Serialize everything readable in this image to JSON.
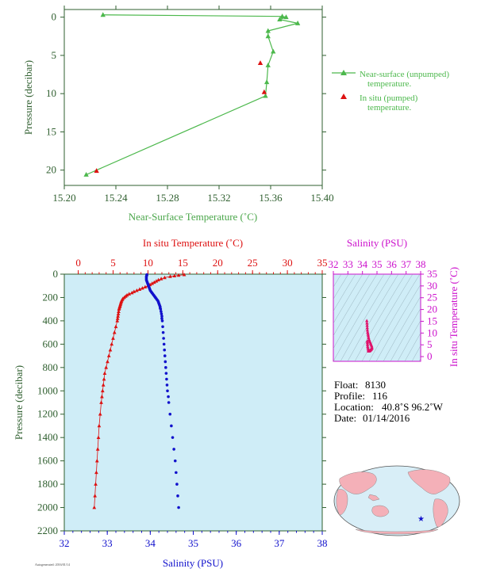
{
  "colors": {
    "top_axis": "#2f5f2f",
    "top_title": "#4aa64a",
    "near_surface": "#4cb84c",
    "in_situ": "#dd1111",
    "salinity": "#1111cc",
    "salinity_axis": "#cc11cc",
    "panel_bg": "#cfedf7",
    "profile_axis": "#2f5f2f",
    "ts_points": "#e0106a",
    "land": "#f4b0b8",
    "ocean": "#d8eef7"
  },
  "chart_data": [
    {
      "type": "line",
      "id": "near-surface",
      "xlabel": "Near-Surface Temperature (˚C)",
      "ylabel": "Pressure (decibar)",
      "xlim": [
        15.2,
        15.4
      ],
      "ylim": [
        22,
        -1
      ],
      "xticks": [
        "15.20",
        "15.24",
        "15.28",
        "15.32",
        "15.36",
        "15.40"
      ],
      "yticks": [
        "0",
        "5",
        "10",
        "15",
        "20"
      ],
      "series": [
        {
          "name": "Near-surface (unpumped) temperature.",
          "marker": "triangle",
          "x": [
            15.23,
            15.369,
            15.372,
            15.367,
            15.381,
            15.358,
            15.358,
            15.362,
            15.358,
            15.357,
            15.356,
            15.217
          ],
          "y": [
            -0.3,
            -0.1,
            0.0,
            0.3,
            0.8,
            1.8,
            2.5,
            4.5,
            6.3,
            8.5,
            10.3,
            20.6
          ]
        },
        {
          "name": "In situ (pumped) temperature.",
          "marker": "triangle",
          "x": [
            15.352,
            15.355,
            15.225
          ],
          "y": [
            6.0,
            9.8,
            20.1
          ]
        }
      ],
      "legend": [
        {
          "label_line1": "Near-surface (unpumped)",
          "label_line2": "temperature."
        },
        {
          "label_line1": "In situ (pumped)",
          "label_line2": "temperature."
        }
      ]
    },
    {
      "type": "line",
      "id": "profile",
      "top_xlabel": "In situ Temperature (˚C)",
      "bottom_xlabel": "Salinity (PSU)",
      "ylabel": "Pressure (decibar)",
      "temp_lim": [
        -2,
        35
      ],
      "sal_lim": [
        32,
        38
      ],
      "ylim": [
        2200,
        0
      ],
      "temp_ticks": [
        "0",
        "5",
        "10",
        "15",
        "20",
        "25",
        "30",
        "35"
      ],
      "sal_ticks": [
        "32",
        "33",
        "34",
        "35",
        "36",
        "37",
        "38"
      ],
      "yticks": [
        "0",
        "200",
        "400",
        "600",
        "800",
        "1000",
        "1200",
        "1400",
        "1600",
        "1800",
        "2000",
        "2200"
      ],
      "temperature": {
        "p": [
          5,
          10,
          15,
          20,
          30,
          40,
          50,
          60,
          70,
          80,
          90,
          100,
          110,
          120,
          130,
          140,
          150,
          160,
          170,
          180,
          190,
          200,
          210,
          220,
          230,
          240,
          250,
          260,
          270,
          280,
          290,
          300,
          320,
          340,
          360,
          380,
          400,
          450,
          500,
          550,
          600,
          650,
          700,
          750,
          800,
          850,
          900,
          950,
          1000,
          1050,
          1100,
          1200,
          1300,
          1400,
          1500,
          1600,
          1700,
          1800,
          1900,
          2000
        ],
        "t": [
          15.2,
          14.4,
          13.8,
          13.2,
          12.4,
          11.9,
          11.5,
          11.2,
          10.9,
          10.6,
          10.3,
          10.0,
          9.6,
          9.2,
          8.8,
          8.4,
          8.0,
          7.7,
          7.3,
          7.0,
          6.8,
          6.6,
          6.4,
          6.3,
          6.2,
          6.15,
          6.1,
          6.05,
          6.0,
          5.95,
          5.9,
          5.85,
          5.8,
          5.75,
          5.7,
          5.65,
          5.6,
          5.4,
          5.2,
          5.0,
          4.8,
          4.6,
          4.4,
          4.2,
          4.0,
          3.8,
          3.7,
          3.6,
          3.5,
          3.4,
          3.3,
          3.15,
          3.0,
          2.9,
          2.8,
          2.7,
          2.6,
          2.5,
          2.4,
          2.3
        ]
      },
      "salinity": {
        "p": [
          5,
          10,
          20,
          30,
          40,
          50,
          60,
          70,
          80,
          90,
          100,
          110,
          120,
          130,
          140,
          150,
          160,
          170,
          180,
          190,
          200,
          210,
          220,
          230,
          240,
          250,
          260,
          270,
          280,
          290,
          300,
          320,
          340,
          360,
          380,
          400,
          450,
          500,
          550,
          600,
          650,
          700,
          750,
          800,
          850,
          900,
          950,
          1000,
          1050,
          1100,
          1200,
          1300,
          1400,
          1500,
          1600,
          1700,
          1800,
          1900,
          2000
        ],
        "s": [
          33.92,
          33.92,
          33.91,
          33.91,
          33.91,
          33.91,
          33.92,
          33.93,
          33.94,
          33.95,
          33.96,
          33.97,
          33.98,
          33.99,
          34.0,
          34.02,
          34.04,
          34.06,
          34.08,
          34.1,
          34.12,
          34.14,
          34.16,
          34.18,
          34.19,
          34.2,
          34.21,
          34.22,
          34.23,
          34.23,
          34.24,
          34.25,
          34.26,
          34.27,
          34.27,
          34.28,
          34.29,
          34.3,
          34.31,
          34.32,
          34.33,
          34.34,
          34.35,
          34.36,
          34.37,
          34.38,
          34.39,
          34.4,
          34.42,
          34.43,
          34.46,
          34.49,
          34.52,
          34.55,
          34.58,
          34.6,
          34.62,
          34.64,
          34.66
        ]
      }
    },
    {
      "type": "scatter",
      "id": "ts-diagram",
      "top_xlabel": "Salinity (PSU)",
      "right_ylabel": "In situ Temperature (˚C)",
      "xlim": [
        32,
        38
      ],
      "ylim": [
        -2,
        35
      ],
      "xticks": [
        "32",
        "33",
        "34",
        "35",
        "36",
        "37",
        "38"
      ],
      "yticks": [
        "0",
        "5",
        "10",
        "15",
        "20",
        "25",
        "30",
        "35"
      ],
      "points": {
        "s": [
          34.3,
          34.31,
          34.32,
          34.33,
          34.34,
          34.36,
          34.38,
          34.4,
          34.42,
          34.45,
          34.48,
          34.52,
          34.56,
          34.6,
          34.64,
          34.66,
          34.62,
          34.58,
          34.55,
          34.52,
          34.5,
          34.48,
          34.45,
          34.42,
          34.4,
          34.38,
          34.36,
          34.35,
          34.34,
          34.33
        ],
        "t": [
          15.2,
          14.2,
          13.2,
          12.2,
          11.2,
          10.3,
          9.5,
          8.8,
          8.0,
          7.3,
          6.8,
          6.2,
          5.6,
          5.0,
          4.4,
          3.6,
          3.2,
          3.0,
          2.8,
          2.6,
          2.5,
          2.4,
          2.35,
          2.3,
          2.8,
          3.5,
          4.2,
          5.0,
          5.8,
          6.5
        ]
      }
    }
  ],
  "info": {
    "float_label": "Float:",
    "float_value": "8130",
    "profile_label": "Profile:",
    "profile_value": "116",
    "location_label": "Location:",
    "location_value": "40.8˚S  96.2˚W",
    "date_label": "Date:",
    "date_value": "01/14/2016"
  },
  "footer": "Autogenerated: 2016/01/14"
}
